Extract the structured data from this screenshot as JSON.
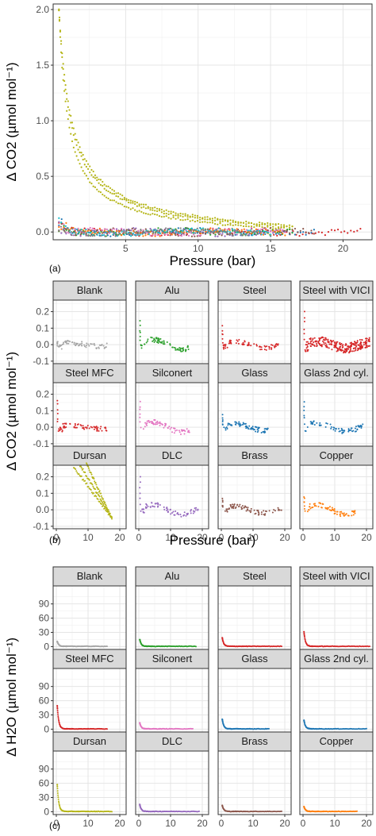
{
  "chart_data": [
    {
      "panel_label": "(a)",
      "type": "scatter",
      "xlabel": "Pressure (bar)",
      "ylabel": "Δ CO2 (µmol mol⁻¹)",
      "xlim": [
        0,
        22
      ],
      "ylim": [
        -0.07,
        2.05
      ],
      "xticks": [
        "5",
        "10",
        "15",
        "20"
      ],
      "yticks": [
        "0.0",
        "0.5",
        "1.0",
        "1.5",
        "2.0"
      ],
      "grid": true,
      "legend": "none",
      "series": [
        {
          "color": "#b5b516",
          "kind": "decay",
          "x_range": [
            0.4,
            16.5
          ],
          "y0": 2.0,
          "runs": 3
        },
        {
          "color": "#d62728",
          "kind": "flat",
          "x_range": [
            0.4,
            21.2
          ]
        },
        {
          "color": "#1f77b4",
          "kind": "flat",
          "x_range": [
            0.4,
            18.0
          ]
        },
        {
          "color": "#2ca02c",
          "kind": "flat",
          "x_range": [
            0.4,
            16.5
          ]
        },
        {
          "color": "#9467bd",
          "kind": "flat",
          "x_range": [
            0.4,
            16.0
          ]
        },
        {
          "color": "#8c564b",
          "kind": "flat",
          "x_range": [
            0.4,
            18.0
          ]
        },
        {
          "color": "#e377c2",
          "kind": "flat",
          "x_range": [
            0.4,
            16.0
          ]
        },
        {
          "color": "#ff7f0e",
          "kind": "flat",
          "x_range": [
            0.4,
            16.0
          ]
        },
        {
          "color": "#17becf",
          "kind": "flat",
          "x_range": [
            0.4,
            15.0
          ]
        },
        {
          "color": "#7f7f7f",
          "kind": "flat",
          "x_range": [
            0.4,
            14.0
          ]
        }
      ]
    },
    {
      "panel_label": "(b)",
      "type": "scatter",
      "xlabel": "Pressure (bar)",
      "ylabel": "Δ CO2 (µmol mol⁻¹)",
      "xlim": [
        -1,
        22
      ],
      "ylim": [
        -0.115,
        0.27
      ],
      "xticks": [
        "0",
        "10",
        "20"
      ],
      "yticks": [
        "-0.1",
        "0.0",
        "0.1",
        "0.2"
      ],
      "grid": true,
      "panels": [
        {
          "title": "Blank",
          "color": "#a6a6a6",
          "x_end": 16,
          "spike": 0.02,
          "amp": 0.01
        },
        {
          "title": "Alu",
          "color": "#2ca02c",
          "x_end": 17,
          "spike": 0.14,
          "amp": 0.03
        },
        {
          "title": "Steel",
          "color": "#d62728",
          "x_end": 18,
          "spike": 0.11,
          "amp": 0.02
        },
        {
          "title": "Steel with VICI",
          "color": "#d62728",
          "x_end": 21,
          "spike": 0.2,
          "amp": 0.02,
          "dense": true
        },
        {
          "title": "Steel MFC",
          "color": "#d62728",
          "x_end": 16,
          "spike": 0.16,
          "amp": 0.01
        },
        {
          "title": "Silconert",
          "color": "#e377c2",
          "x_end": 16,
          "spike": 0.15,
          "amp": 0.03
        },
        {
          "title": "Glass",
          "color": "#1f77b4",
          "x_end": 15,
          "spike": 0.07,
          "amp": 0.02
        },
        {
          "title": "Glass 2nd cyl.",
          "color": "#1f77b4",
          "x_end": 19,
          "spike": 0.15,
          "amp": 0.025
        },
        {
          "title": "Dursan",
          "color": "#b5b516",
          "x_end": 17.5,
          "spike": 0.0,
          "amp": 0.0,
          "decay": true
        },
        {
          "title": "DLC",
          "color": "#9467bd",
          "x_end": 19,
          "spike": 0.2,
          "amp": 0.03
        },
        {
          "title": "Brass",
          "color": "#8c564b",
          "x_end": 19,
          "spike": 0.06,
          "amp": 0.02
        },
        {
          "title": "Copper",
          "color": "#ff7f0e",
          "x_end": 17,
          "spike": 0.08,
          "amp": 0.03
        }
      ]
    },
    {
      "panel_label": "(c)",
      "type": "scatter",
      "xlabel": "",
      "ylabel": "Δ H2O (µmol mol⁻¹)",
      "xlim": [
        -1,
        22
      ],
      "ylim": [
        -6,
        128
      ],
      "xticks": [
        "0",
        "10",
        "20"
      ],
      "yticks": [
        "0",
        "30",
        "60",
        "90"
      ],
      "grid": true,
      "panels": [
        {
          "title": "Blank",
          "color": "#a6a6a6",
          "x_end": 16,
          "spike": 20
        },
        {
          "title": "Alu",
          "color": "#2ca02c",
          "x_end": 18,
          "spike": 28
        },
        {
          "title": "Steel",
          "color": "#d62728",
          "x_end": 19,
          "spike": 35
        },
        {
          "title": "Steel with VICI",
          "color": "#d62728",
          "x_end": 21,
          "spike": 60
        },
        {
          "title": "Steel MFC",
          "color": "#d62728",
          "x_end": 16,
          "spike": 95
        },
        {
          "title": "Silconert",
          "color": "#e377c2",
          "x_end": 17,
          "spike": 25
        },
        {
          "title": "Glass",
          "color": "#1f77b4",
          "x_end": 15,
          "spike": 40
        },
        {
          "title": "Glass 2nd cyl.",
          "color": "#1f77b4",
          "x_end": 20,
          "spike": 35
        },
        {
          "title": "Dursan",
          "color": "#b5b516",
          "x_end": 17.5,
          "spike": 110
        },
        {
          "title": "DLC",
          "color": "#9467bd",
          "x_end": 19,
          "spike": 28
        },
        {
          "title": "Brass",
          "color": "#8c564b",
          "x_end": 19,
          "spike": 25
        },
        {
          "title": "Copper",
          "color": "#ff7f0e",
          "x_end": 17,
          "spike": 20
        }
      ]
    }
  ]
}
